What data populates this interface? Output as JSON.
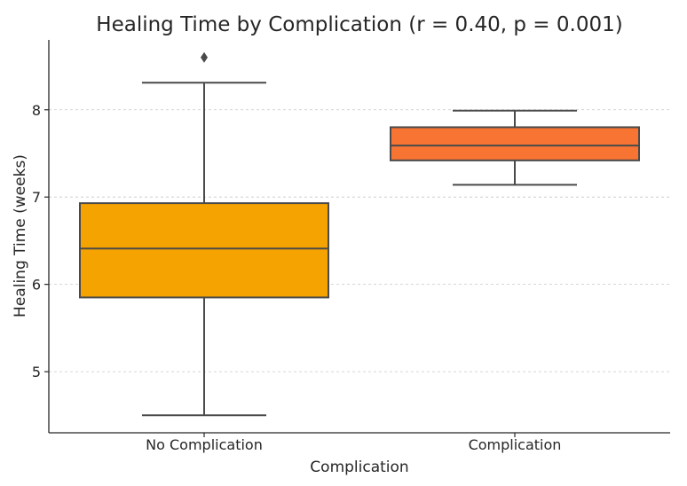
{
  "chart_data": {
    "type": "box",
    "title": "Healing Time by Complication (r = 0.40, p = 0.001)",
    "xlabel": "Complication",
    "ylabel": "Healing Time (weeks)",
    "ylim": [
      4.3,
      8.8
    ],
    "yticks": [
      5,
      6,
      7,
      8
    ],
    "grid": "y-dashed",
    "categories": [
      "No Complication",
      "Complication"
    ],
    "boxes": [
      {
        "category": "No Complication",
        "whisker_low": 4.5,
        "q1": 5.85,
        "median": 6.41,
        "q3": 6.93,
        "whisker_high": 8.31,
        "outliers": [
          8.6
        ],
        "color": "#F5A300"
      },
      {
        "category": "Complication",
        "whisker_low": 7.14,
        "q1": 7.42,
        "median": 7.59,
        "q3": 7.8,
        "whisker_high": 7.99,
        "outliers": [],
        "color": "#F77433"
      }
    ]
  }
}
